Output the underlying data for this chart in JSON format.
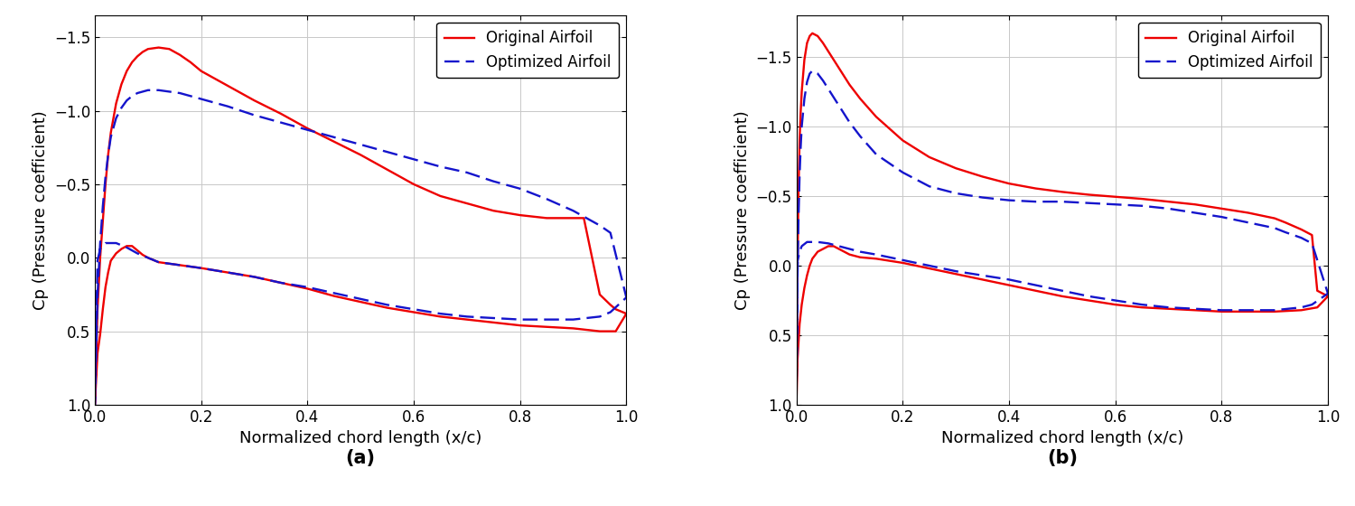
{
  "ylabel": "Cp (Pressure coefficient)",
  "xlabel": "Normalized chord length (x/c)",
  "legend_original": "Original Airfoil",
  "legend_optimized": "Optimized Airfoil",
  "original_color": "#ee0000",
  "optimized_color": "#1414cc",
  "label_a": "(a)",
  "label_b": "(b)",
  "xlim": [
    0,
    1
  ],
  "ylim_a": [
    1.0,
    -1.65
  ],
  "ylim_b": [
    1.0,
    -1.8
  ],
  "xticks": [
    0,
    0.2,
    0.4,
    0.6,
    0.8,
    1
  ],
  "yticks_a": [
    1,
    0.5,
    0,
    -0.5,
    -1,
    -1.5
  ],
  "yticks_b": [
    1,
    0.5,
    0,
    -0.5,
    -1,
    -1.5
  ],
  "a_orig_x": [
    0.0,
    0.005,
    0.01,
    0.015,
    0.02,
    0.025,
    0.03,
    0.04,
    0.05,
    0.06,
    0.07,
    0.08,
    0.09,
    0.1,
    0.12,
    0.14,
    0.16,
    0.18,
    0.2,
    0.25,
    0.3,
    0.35,
    0.4,
    0.45,
    0.5,
    0.55,
    0.6,
    0.65,
    0.7,
    0.75,
    0.8,
    0.85,
    0.9,
    0.92,
    0.95,
    0.97,
    0.98,
    1.0,
    0.98,
    0.95,
    0.9,
    0.85,
    0.8,
    0.75,
    0.7,
    0.65,
    0.6,
    0.55,
    0.5,
    0.45,
    0.4,
    0.35,
    0.3,
    0.25,
    0.2,
    0.18,
    0.16,
    0.14,
    0.12,
    0.1,
    0.09,
    0.08,
    0.07,
    0.06,
    0.05,
    0.04,
    0.03,
    0.025,
    0.02,
    0.015,
    0.01,
    0.005,
    0.0
  ],
  "a_orig_y": [
    1.0,
    0.35,
    0.0,
    -0.25,
    -0.5,
    -0.7,
    -0.85,
    -1.05,
    -1.18,
    -1.27,
    -1.33,
    -1.37,
    -1.4,
    -1.42,
    -1.43,
    -1.42,
    -1.38,
    -1.33,
    -1.27,
    -1.17,
    -1.07,
    -0.98,
    -0.88,
    -0.79,
    -0.7,
    -0.6,
    -0.5,
    -0.42,
    -0.37,
    -0.32,
    -0.29,
    -0.27,
    -0.27,
    -0.27,
    0.25,
    0.32,
    0.35,
    0.38,
    0.5,
    0.5,
    0.48,
    0.47,
    0.46,
    0.44,
    0.42,
    0.4,
    0.37,
    0.34,
    0.3,
    0.26,
    0.21,
    0.17,
    0.13,
    0.1,
    0.07,
    0.06,
    0.05,
    0.04,
    0.03,
    0.0,
    -0.02,
    -0.05,
    -0.08,
    -0.08,
    -0.06,
    -0.03,
    0.02,
    0.1,
    0.2,
    0.35,
    0.52,
    0.65,
    1.0
  ],
  "a_opt_x": [
    0.0,
    0.005,
    0.01,
    0.015,
    0.02,
    0.025,
    0.03,
    0.04,
    0.05,
    0.06,
    0.07,
    0.08,
    0.09,
    0.1,
    0.12,
    0.14,
    0.16,
    0.18,
    0.2,
    0.25,
    0.3,
    0.35,
    0.4,
    0.45,
    0.5,
    0.55,
    0.6,
    0.65,
    0.7,
    0.75,
    0.8,
    0.85,
    0.9,
    0.92,
    0.95,
    0.97,
    1.0,
    0.97,
    0.95,
    0.9,
    0.85,
    0.8,
    0.75,
    0.7,
    0.65,
    0.6,
    0.55,
    0.5,
    0.45,
    0.4,
    0.35,
    0.3,
    0.25,
    0.2,
    0.18,
    0.16,
    0.14,
    0.12,
    0.1,
    0.08,
    0.06,
    0.04,
    0.02,
    0.01,
    0.005,
    0.0
  ],
  "a_opt_y": [
    1.0,
    0.25,
    -0.1,
    -0.35,
    -0.55,
    -0.7,
    -0.82,
    -0.95,
    -1.02,
    -1.07,
    -1.1,
    -1.12,
    -1.13,
    -1.14,
    -1.14,
    -1.13,
    -1.12,
    -1.1,
    -1.08,
    -1.03,
    -0.97,
    -0.92,
    -0.87,
    -0.82,
    -0.77,
    -0.72,
    -0.67,
    -0.62,
    -0.58,
    -0.52,
    -0.47,
    -0.4,
    -0.32,
    -0.28,
    -0.22,
    -0.17,
    0.27,
    0.37,
    0.4,
    0.42,
    0.42,
    0.42,
    0.41,
    0.4,
    0.38,
    0.35,
    0.32,
    0.28,
    0.24,
    0.2,
    0.17,
    0.13,
    0.1,
    0.07,
    0.06,
    0.05,
    0.04,
    0.03,
    0.0,
    -0.03,
    -0.07,
    -0.1,
    -0.1,
    -0.06,
    0.02,
    1.0
  ],
  "b_orig_x": [
    0.0,
    0.002,
    0.004,
    0.006,
    0.008,
    0.01,
    0.015,
    0.02,
    0.025,
    0.03,
    0.04,
    0.05,
    0.06,
    0.07,
    0.08,
    0.09,
    0.1,
    0.12,
    0.15,
    0.2,
    0.25,
    0.3,
    0.35,
    0.4,
    0.45,
    0.5,
    0.55,
    0.6,
    0.65,
    0.7,
    0.75,
    0.8,
    0.85,
    0.9,
    0.92,
    0.95,
    0.97,
    0.98,
    1.0,
    0.98,
    0.95,
    0.9,
    0.85,
    0.8,
    0.75,
    0.7,
    0.65,
    0.6,
    0.55,
    0.5,
    0.45,
    0.4,
    0.35,
    0.3,
    0.25,
    0.2,
    0.15,
    0.12,
    0.1,
    0.09,
    0.08,
    0.07,
    0.06,
    0.05,
    0.04,
    0.03,
    0.025,
    0.02,
    0.015,
    0.01,
    0.006,
    0.004,
    0.002,
    0.0
  ],
  "b_orig_y": [
    1.0,
    0.0,
    -0.55,
    -0.9,
    -1.1,
    -1.25,
    -1.48,
    -1.6,
    -1.65,
    -1.67,
    -1.65,
    -1.6,
    -1.54,
    -1.48,
    -1.42,
    -1.36,
    -1.3,
    -1.2,
    -1.07,
    -0.9,
    -0.78,
    -0.7,
    -0.64,
    -0.59,
    -0.555,
    -0.53,
    -0.51,
    -0.495,
    -0.48,
    -0.46,
    -0.44,
    -0.41,
    -0.38,
    -0.34,
    -0.31,
    -0.26,
    -0.22,
    0.18,
    0.22,
    0.3,
    0.32,
    0.33,
    0.33,
    0.33,
    0.32,
    0.31,
    0.3,
    0.28,
    0.25,
    0.22,
    0.18,
    0.14,
    0.1,
    0.06,
    0.02,
    -0.02,
    -0.05,
    -0.06,
    -0.08,
    -0.1,
    -0.12,
    -0.14,
    -0.14,
    -0.12,
    -0.1,
    -0.05,
    0.0,
    0.07,
    0.16,
    0.28,
    0.42,
    0.55,
    0.68,
    1.0
  ],
  "b_opt_x": [
    0.0,
    0.002,
    0.004,
    0.006,
    0.008,
    0.01,
    0.015,
    0.02,
    0.025,
    0.03,
    0.04,
    0.05,
    0.06,
    0.07,
    0.08,
    0.09,
    0.1,
    0.12,
    0.15,
    0.2,
    0.25,
    0.3,
    0.35,
    0.4,
    0.45,
    0.5,
    0.55,
    0.6,
    0.65,
    0.7,
    0.75,
    0.8,
    0.85,
    0.9,
    0.92,
    0.95,
    0.97,
    1.0,
    0.97,
    0.95,
    0.9,
    0.85,
    0.8,
    0.75,
    0.7,
    0.65,
    0.6,
    0.55,
    0.5,
    0.45,
    0.4,
    0.35,
    0.3,
    0.25,
    0.2,
    0.15,
    0.12,
    0.1,
    0.08,
    0.06,
    0.04,
    0.02,
    0.01,
    0.006,
    0.002,
    0.0
  ],
  "b_opt_y": [
    1.0,
    0.1,
    -0.35,
    -0.65,
    -0.85,
    -1.0,
    -1.2,
    -1.32,
    -1.38,
    -1.4,
    -1.38,
    -1.33,
    -1.27,
    -1.21,
    -1.15,
    -1.09,
    -1.03,
    -0.93,
    -0.8,
    -0.67,
    -0.57,
    -0.52,
    -0.49,
    -0.47,
    -0.46,
    -0.46,
    -0.45,
    -0.44,
    -0.43,
    -0.41,
    -0.38,
    -0.35,
    -0.31,
    -0.27,
    -0.24,
    -0.2,
    -0.16,
    0.2,
    0.28,
    0.3,
    0.32,
    0.32,
    0.32,
    0.31,
    0.3,
    0.28,
    0.25,
    0.22,
    0.18,
    0.14,
    0.1,
    0.07,
    0.04,
    0.0,
    -0.04,
    -0.08,
    -0.1,
    -0.12,
    -0.14,
    -0.16,
    -0.17,
    -0.17,
    -0.14,
    -0.1,
    -0.03,
    1.0
  ],
  "line_width": 1.7,
  "font_size": 13,
  "tick_font_size": 12,
  "legend_font_size": 12
}
